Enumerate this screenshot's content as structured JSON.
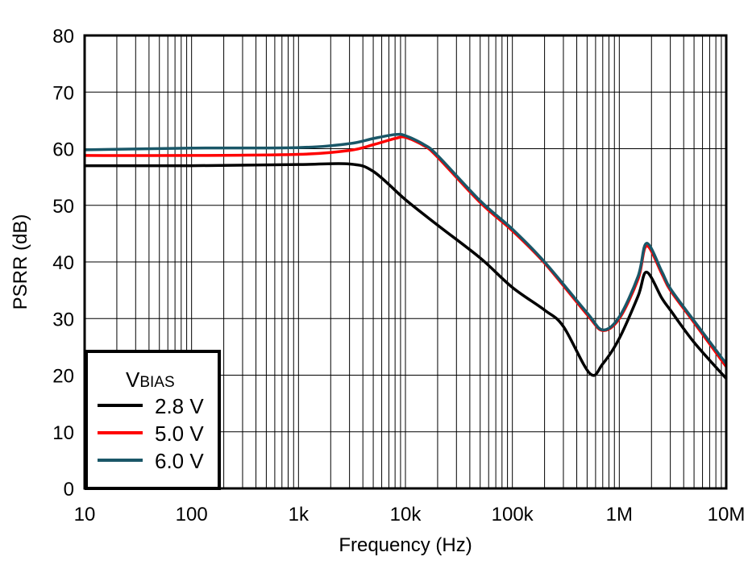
{
  "chart_data": {
    "type": "line",
    "title": "",
    "xlabel": "Frequency (Hz)",
    "ylabel": "PSRR (dB)",
    "xscale": "log",
    "xlim": [
      10,
      10000000
    ],
    "ylim": [
      0,
      80
    ],
    "grid": true,
    "x_ticks": [
      {
        "value": 10,
        "label": "10"
      },
      {
        "value": 100,
        "label": "100"
      },
      {
        "value": 1000,
        "label": "1k"
      },
      {
        "value": 10000,
        "label": "10k"
      },
      {
        "value": 100000,
        "label": "100k"
      },
      {
        "value": 1000000,
        "label": "1M"
      },
      {
        "value": 10000000,
        "label": "10M"
      }
    ],
    "y_ticks": [
      0,
      10,
      20,
      30,
      40,
      50,
      60,
      70,
      80
    ],
    "legend": {
      "title_main": "V",
      "title_sub": "BIAS",
      "placement": "bottom-left"
    },
    "series": [
      {
        "name": "2.8 V",
        "color": "#000000",
        "x": [
          10,
          100,
          1000,
          3000,
          5000,
          10000,
          20000,
          50000,
          100000,
          200000,
          300000,
          530000,
          700000,
          1000000,
          1500000,
          1800000,
          2500000,
          3000000,
          5000000,
          10000000
        ],
        "y": [
          57,
          57,
          57.2,
          57.3,
          56,
          51,
          46.5,
          40.7,
          35.5,
          31.5,
          28.6,
          20.3,
          22,
          26.5,
          34,
          38.2,
          33.6,
          31.5,
          25.8,
          19.4
        ]
      },
      {
        "name": "5.0 V",
        "color": "#ff0000",
        "x": [
          10,
          100,
          1000,
          3000,
          5000,
          8000,
          10000,
          15000,
          20000,
          50000,
          100000,
          200000,
          500000,
          700000,
          1000000,
          1500000,
          1800000,
          2500000,
          3000000,
          5000000,
          10000000
        ],
        "y": [
          58.8,
          58.8,
          59,
          59.7,
          60.7,
          61.8,
          62,
          60.5,
          58.5,
          50.5,
          45.5,
          39.8,
          30.7,
          27.9,
          30,
          37,
          42.8,
          37.9,
          35,
          29.3,
          21.5
        ]
      },
      {
        "name": "6.0 V",
        "color": "#1a5768",
        "x": [
          10,
          100,
          1000,
          3000,
          5000,
          8000,
          10000,
          15000,
          20000,
          50000,
          100000,
          200000,
          500000,
          700000,
          1000000,
          1500000,
          1800000,
          2500000,
          3000000,
          5000000,
          10000000
        ],
        "y": [
          59.8,
          60.1,
          60.2,
          60.9,
          61.8,
          62.5,
          62.3,
          60.7,
          58.8,
          50.8,
          45.8,
          40,
          31,
          28,
          30.3,
          37.5,
          43.3,
          38.3,
          35.3,
          29.6,
          22
        ]
      }
    ]
  }
}
